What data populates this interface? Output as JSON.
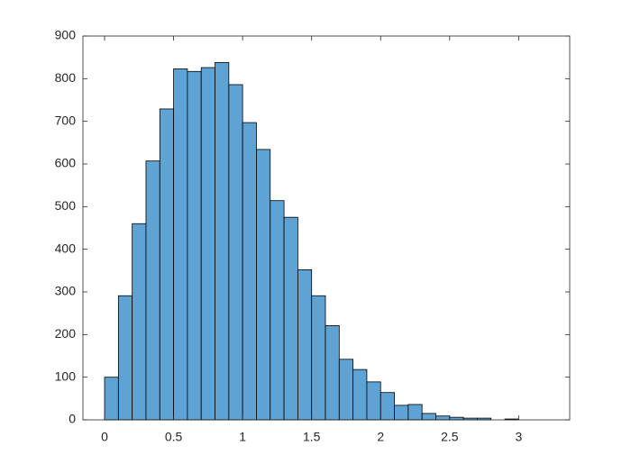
{
  "chart_data": {
    "type": "histogram",
    "bins": [
      0,
      0.1,
      0.2,
      0.3,
      0.4,
      0.5,
      0.6,
      0.7,
      0.8,
      0.9,
      1.0,
      1.1,
      1.2,
      1.3,
      1.4,
      1.5,
      1.6,
      1.7,
      1.8,
      1.9,
      2.0,
      2.1,
      2.2,
      2.3,
      2.4,
      2.5,
      2.6,
      2.7,
      2.8,
      2.9,
      3.0
    ],
    "values": [
      100,
      291,
      460,
      607,
      729,
      823,
      817,
      826,
      838,
      786,
      697,
      634,
      514,
      475,
      352,
      291,
      221,
      142,
      118,
      89,
      64,
      34,
      36,
      15,
      9,
      6,
      4,
      4,
      0,
      2
    ],
    "color": "#5fa3d4",
    "edge_color": "#000000",
    "xlim": [
      -0.157,
      3.37
    ],
    "xticks": [
      0,
      0.5,
      1,
      1.5,
      2,
      2.5,
      3
    ],
    "ylim": [
      0,
      900
    ],
    "yticks": [
      0,
      100,
      200,
      300,
      400,
      500,
      600,
      700,
      800,
      900
    ]
  }
}
